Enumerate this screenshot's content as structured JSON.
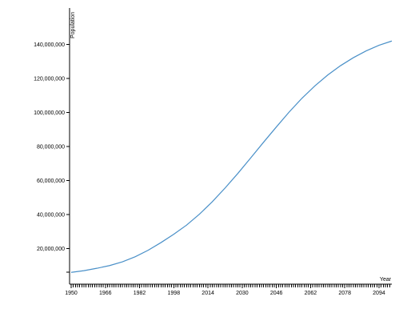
{
  "chart_data": {
    "type": "line",
    "title": "",
    "xlabel": "Year",
    "ylabel": "Population",
    "xlim": [
      1950,
      2100
    ],
    "ylim": [
      0,
      150000000
    ],
    "grid": false,
    "x_tick_labels": [
      "1950",
      "1966",
      "1982",
      "1998",
      "2014",
      "2030",
      "2046",
      "2062",
      "2078",
      "2094"
    ],
    "y_tick_labels": [
      "20,000,000",
      "40,000,000",
      "60,000,000",
      "80,000,000",
      "100,000,000",
      "120,000,000",
      "140,000,000"
    ],
    "series": [
      {
        "color": "#4a90c8",
        "x": [
          1950,
          1956,
          1962,
          1968,
          1974,
          1980,
          1986,
          1992,
          1998,
          2004,
          2010,
          2016,
          2022,
          2028,
          2034,
          2040,
          2046,
          2052,
          2058,
          2064,
          2070,
          2076,
          2082,
          2088,
          2094,
          2100
        ],
        "y": [
          6000000,
          7000000,
          8400000,
          10000000,
          12200000,
          15200000,
          19000000,
          23500000,
          28400000,
          33800000,
          40200000,
          47500000,
          55600000,
          64200000,
          73300000,
          82500000,
          91500000,
          100300000,
          108400000,
          115600000,
          122000000,
          127500000,
          132200000,
          136200000,
          139500000,
          142000000
        ]
      }
    ]
  }
}
